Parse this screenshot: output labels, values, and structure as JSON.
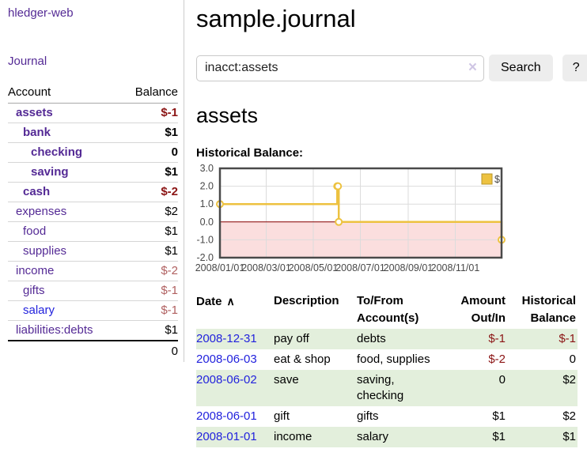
{
  "colors": {
    "purple": "#542a95",
    "blue": "#2222dd",
    "neg": "#8b1414",
    "neg_soft": "#b06060",
    "green": "#e3efdc",
    "btn": "#ededed",
    "divider": "#cccccc",
    "clear_icon": "#cfc6e4",
    "tick": "#484848"
  },
  "sidebar": {
    "brand": "hledger-web",
    "journal_link": "Journal",
    "accounts_table": {
      "headers": {
        "account": "Account",
        "balance": "Balance"
      },
      "rows": [
        {
          "name": "assets",
          "indent": 0,
          "bold": true,
          "link": "purple",
          "balance": "$-1",
          "balance_style": "neg"
        },
        {
          "name": "bank",
          "indent": 1,
          "bold": true,
          "link": "purple",
          "balance": "$1",
          "balance_style": ""
        },
        {
          "name": "checking",
          "indent": 2,
          "bold": true,
          "link": "purple",
          "balance": "0",
          "balance_style": ""
        },
        {
          "name": "saving",
          "indent": 2,
          "bold": true,
          "link": "purple",
          "balance": "$1",
          "balance_style": ""
        },
        {
          "name": "cash",
          "indent": 1,
          "bold": true,
          "link": "purple",
          "balance": "$-2",
          "balance_style": "neg"
        },
        {
          "name": "expenses",
          "indent": 0,
          "bold": false,
          "link": "purple",
          "balance": "$2",
          "balance_style": ""
        },
        {
          "name": "food",
          "indent": 1,
          "bold": false,
          "link": "purple",
          "balance": "$1",
          "balance_style": ""
        },
        {
          "name": "supplies",
          "indent": 1,
          "bold": false,
          "link": "purple",
          "balance": "$1",
          "balance_style": ""
        },
        {
          "name": "income",
          "indent": 0,
          "bold": false,
          "link": "purple",
          "balance": "$-2",
          "balance_style": "negsoft"
        },
        {
          "name": "gifts",
          "indent": 1,
          "bold": false,
          "link": "purple",
          "balance": "$-1",
          "balance_style": "negsoft"
        },
        {
          "name": "salary",
          "indent": 1,
          "bold": false,
          "link": "blue",
          "balance": "$-1",
          "balance_style": "negsoft"
        },
        {
          "name": "liabilities:debts",
          "indent": 0,
          "bold": false,
          "link": "purple",
          "balance": "$1",
          "balance_style": ""
        }
      ],
      "total": "0"
    }
  },
  "header": {
    "title": "sample.journal"
  },
  "search": {
    "query": "inacct:assets",
    "clear_icon": "×",
    "search_button": "Search",
    "help_button": "?"
  },
  "account_page": {
    "heading": "assets",
    "chart_label": "Historical Balance:"
  },
  "chart_data": {
    "type": "line",
    "step": true,
    "title": "Historical Balance",
    "x_range": [
      "2008-01-01",
      "2008-12-31"
    ],
    "ylim": [
      -2,
      3
    ],
    "yticks": [
      3,
      2,
      1,
      0,
      -1,
      -2
    ],
    "xticks": [
      {
        "date": "2008-01-01",
        "label": "2008/01/01"
      },
      {
        "date": "2008-03-01",
        "label": "2008/03/01"
      },
      {
        "date": "2008-05-01",
        "label": "2008/05/01"
      },
      {
        "date": "2008-07-01",
        "label": "2008/07/01"
      },
      {
        "date": "2008-09-01",
        "label": "2008/09/01"
      },
      {
        "date": "2008-11-01",
        "label": "2008/11/01"
      }
    ],
    "series": [
      {
        "name": "$",
        "points": [
          [
            "2008-01-01",
            1
          ],
          [
            "2008-06-01",
            2
          ],
          [
            "2008-06-02",
            2
          ],
          [
            "2008-06-03",
            0
          ],
          [
            "2008-12-31",
            -1
          ]
        ]
      }
    ],
    "legend": {
      "position": "top-right",
      "label": "$"
    },
    "colors": {
      "line": "#edc240",
      "marker_fill": "#ffffff",
      "negative_region": "#fbdede",
      "zero_line": "#8b0000",
      "grid": "#dcdcdc",
      "border": "#4a4a4a",
      "legend_box_border": "#b8952a"
    }
  },
  "register": {
    "headers": {
      "date": "Date",
      "sort_icon": "∧",
      "description": "Description",
      "tofrom1": "To/From",
      "tofrom2": "Account(s)",
      "amount1": "Amount",
      "amount2": "Out/In",
      "bal1": "Historical",
      "bal2": "Balance"
    },
    "rows": [
      {
        "date": "2008-12-31",
        "description": "pay off",
        "accounts": "debts",
        "amount": "$-1",
        "amount_style": "neg",
        "balance": "$-1",
        "balance_style": "neg",
        "shaded": true
      },
      {
        "date": "2008-06-03",
        "description": "eat & shop",
        "accounts": "food, supplies",
        "amount": "$-2",
        "amount_style": "neg",
        "balance": "0",
        "balance_style": "",
        "shaded": false
      },
      {
        "date": "2008-06-02",
        "description": "save",
        "accounts": "saving, checking",
        "amount": "0",
        "amount_style": "",
        "balance": "$2",
        "balance_style": "",
        "shaded": true
      },
      {
        "date": "2008-06-01",
        "description": "gift",
        "accounts": "gifts",
        "amount": "$1",
        "amount_style": "",
        "balance": "$2",
        "balance_style": "",
        "shaded": false
      },
      {
        "date": "2008-01-01",
        "description": "income",
        "accounts": "salary",
        "amount": "$1",
        "amount_style": "",
        "balance": "$1",
        "balance_style": "",
        "shaded": true
      }
    ]
  }
}
